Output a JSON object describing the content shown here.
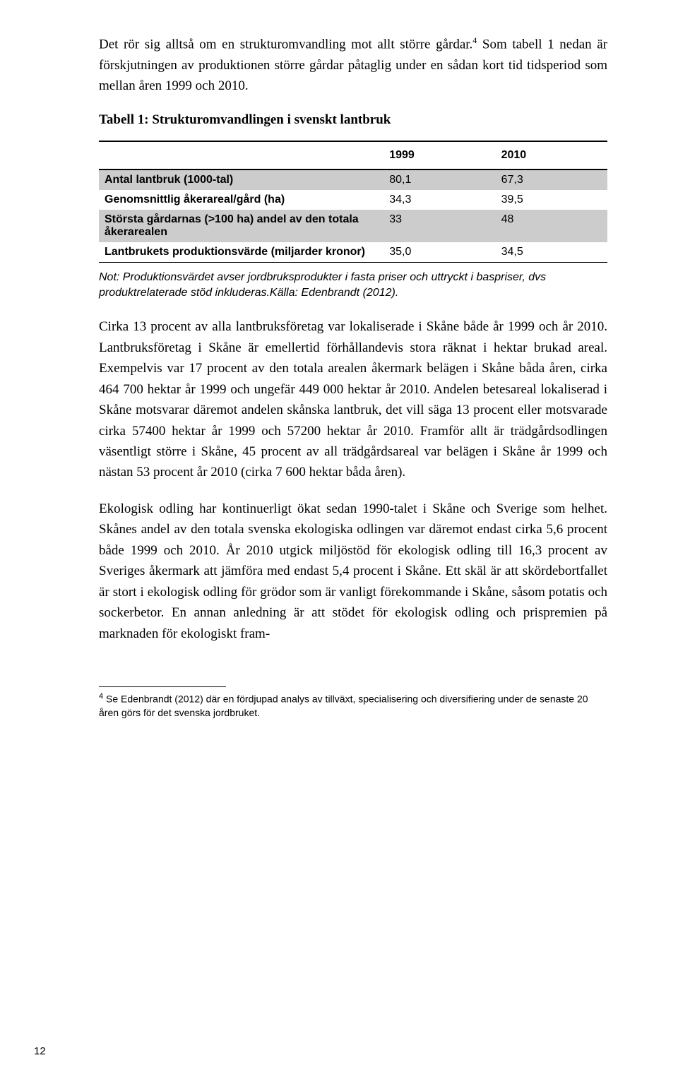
{
  "paragraphs": {
    "p1a": "Det rör sig alltså om en strukturomvandling mot allt större gårdar.",
    "p1_sup": "4",
    "p1b": " Som tabell 1 nedan är förskjutningen av produktionen större gårdar påtaglig under en sådan kort tid tidsperiod som mellan åren 1999 och 2010.",
    "table_caption": "Tabell 1: Strukturomvandlingen i svenskt lantbruk",
    "table_note": "Not: Produktionsvärdet avser jordbruksprodukter i fasta priser och uttryckt i baspriser, dvs produktrelaterade stöd inkluderas.Källa: Edenbrandt (2012).",
    "p2": "Cirka 13 procent av alla lantbruksföretag var lokaliserade i Skåne både år 1999 och år 2010. Lantbruksföretag i Skåne är emellertid förhållandevis stora räknat i hektar brukad areal. Exempelvis var 17 procent av den totala arealen åkermark belägen i Skåne båda åren, cirka 464 700 hektar år 1999 och ungefär 449 000 hektar år 2010. Andelen betesareal lokaliserad i Skåne motsvarar däremot andelen skånska lantbruk, det vill säga 13 procent eller motsvarade cirka 57400 hektar år 1999 och 57200 hektar år 2010. Framför allt är trädgårdsodlingen väsentligt större i Skåne, 45 procent av all trädgårdsareal var belägen i Skåne år 1999 och nästan 53 procent år 2010 (cirka 7 600 hektar båda åren).",
    "p3": "Ekologisk odling har kontinuerligt ökat sedan 1990-talet i Skåne och Sverige som helhet. Skånes andel av den totala svenska ekologiska odlingen var däremot endast cirka 5,6 procent både 1999 och 2010. År 2010 utgick miljöstöd för ekologisk odling till 16,3 procent av Sveriges åkermark att jämföra med endast 5,4 procent i Skåne. Ett skäl är att skördebortfallet är stort i ekologisk odling för grödor som är vanligt förekommande i Skåne, såsom potatis och sockerbetor. En annan anledning är att stödet för ekologisk odling och prispremien på marknaden för ekologiskt fram-"
  },
  "table": {
    "col_headers": [
      "",
      "1999",
      "2010"
    ],
    "rows": [
      {
        "label": "Antal lantbruk (1000-tal)",
        "y1999": "80,1",
        "y2010": "67,3",
        "shaded": true
      },
      {
        "label": "Genomsnittlig åkerareal/gård (ha)",
        "y1999": "34,3",
        "y2010": "39,5",
        "shaded": false
      },
      {
        "label": "Största gårdarnas (>100 ha) andel av den totala åkerarealen",
        "y1999": "33",
        "y2010": "48",
        "shaded": true
      },
      {
        "label": "Lantbrukets produktionsvärde (miljarder kronor)",
        "y1999": "35,0",
        "y2010": "34,5",
        "shaded": false
      }
    ]
  },
  "footnote": {
    "num": "4",
    "text": " Se Edenbrandt (2012) där en fördjupad analys av tillväxt, specialisering och diversifiering under de senaste 20 åren görs för det svenska jordbruket."
  },
  "page_number": "12"
}
